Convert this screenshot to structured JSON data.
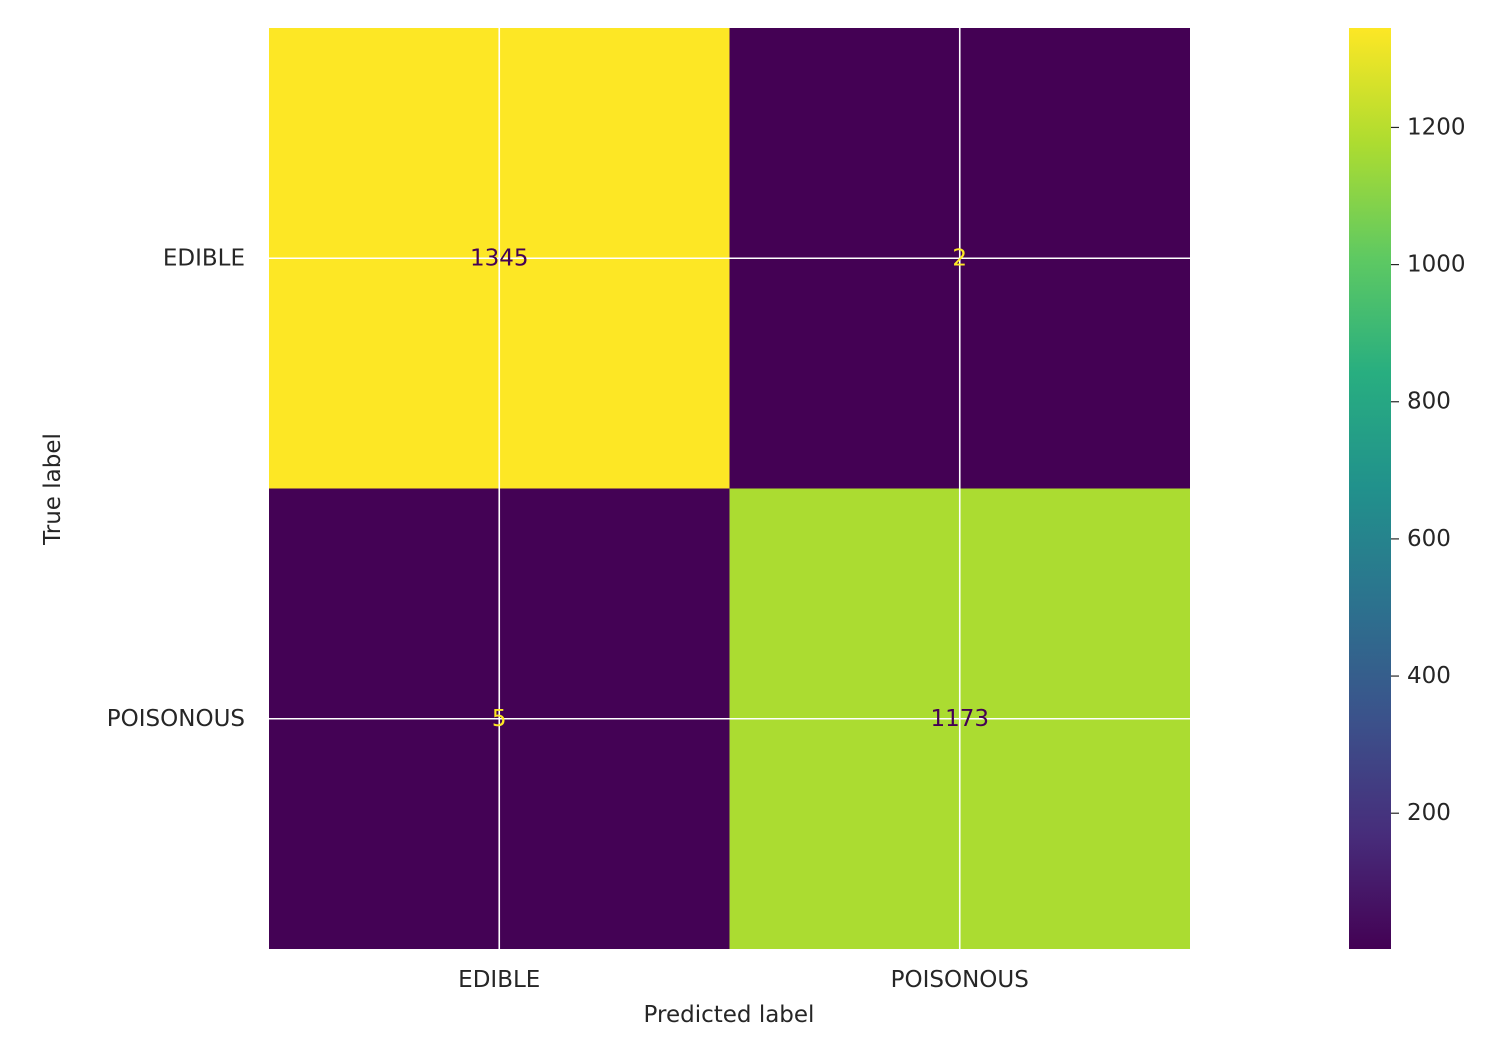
{
  "chart_data": {
    "type": "heatmap",
    "xlabel": "Predicted label",
    "ylabel": "True label",
    "x_categories": [
      "EDIBLE",
      "POISONOUS"
    ],
    "y_categories": [
      "EDIBLE",
      "POISONOUS"
    ],
    "values": [
      [
        1345,
        2
      ],
      [
        5,
        1173
      ]
    ],
    "colormap": "viridis",
    "color_range": [
      2,
      1345
    ],
    "colorbar_ticks": [
      200,
      400,
      600,
      800,
      1000,
      1200
    ],
    "grid": true,
    "grid_color": "#ffffff",
    "text_color_on_light": "#440154",
    "text_color_on_dark": "#fde725"
  }
}
